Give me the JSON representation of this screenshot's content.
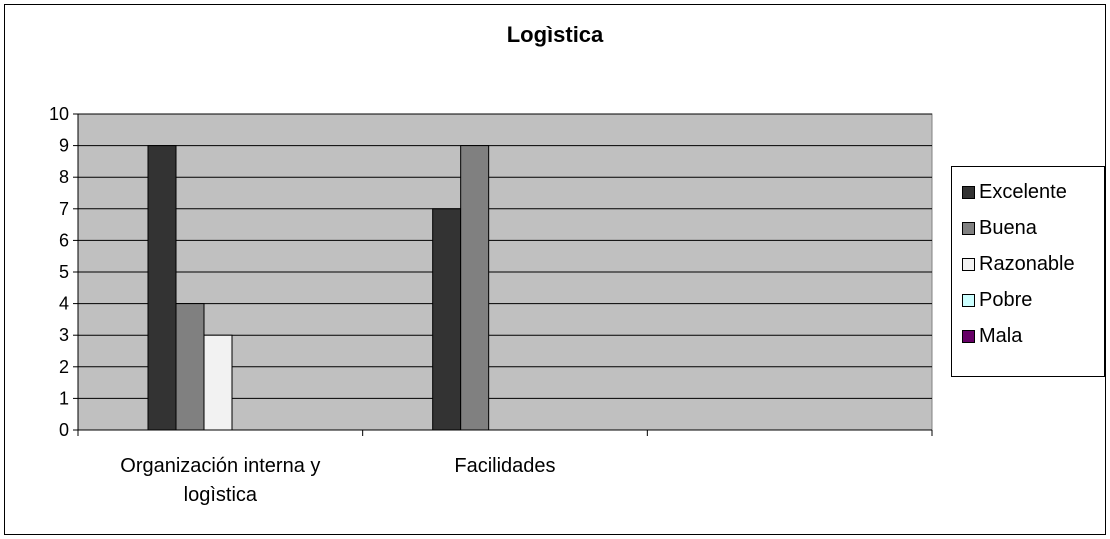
{
  "chart_data": {
    "type": "bar",
    "title": "Logìstica",
    "xlabel": "",
    "ylabel": "",
    "categories": [
      "Organización interna y logìstica",
      "Facilidades",
      ""
    ],
    "series": [
      {
        "name": "Excelente",
        "color": "#333333",
        "values": [
          9,
          7,
          0
        ]
      },
      {
        "name": "Buena",
        "color": "#808080",
        "values": [
          4,
          9,
          0
        ]
      },
      {
        "name": "Razonable",
        "color": "#f2f2f2",
        "values": [
          3,
          0,
          0
        ]
      },
      {
        "name": "Pobre",
        "color": "#ccffff",
        "values": [
          0,
          0,
          0
        ]
      },
      {
        "name": "Mala",
        "color": "#660066",
        "values": [
          0,
          0,
          0
        ]
      }
    ],
    "ylim": [
      0,
      10
    ],
    "yticks": [
      0,
      1,
      2,
      3,
      4,
      5,
      6,
      7,
      8,
      9,
      10
    ],
    "grid": true,
    "plot_background": "#c0c0c0",
    "legend_position": "right"
  }
}
